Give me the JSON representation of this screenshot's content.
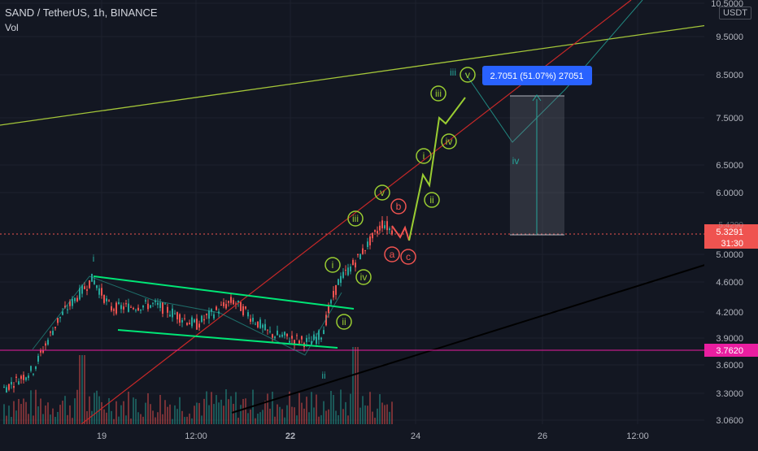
{
  "header": {
    "title": "SAND / TetherUS, 1h, BINANCE",
    "indicator": "Vol",
    "currency": "USDT"
  },
  "colors": {
    "bg": "#131722",
    "up": "#26a69a",
    "down": "#ef5350",
    "green_line": "#00e676",
    "olive_line": "#a4c639",
    "red_line": "#c62828",
    "magenta": "#e91ea0"
  },
  "chart_data": {
    "type": "candlestick",
    "symbol": "SAND / TetherUS",
    "interval": "1h",
    "exchange": "BINANCE",
    "y_ticks": [
      "10.5000",
      "9.5000",
      "8.5000",
      "7.5000",
      "6.5000",
      "6.0000",
      "5.0000",
      "4.6000",
      "4.2000",
      "3.9000",
      "3.6000",
      "3.3000",
      "3.0600"
    ],
    "x_ticks": [
      "19",
      "12:00",
      "22",
      "24",
      "26",
      "12:00"
    ],
    "last_price": "5.3291",
    "countdown": "31:30",
    "marked_level": "3.7620",
    "partial_label": "5.4290",
    "measure_label": "2.7051 (51.07%) 27051",
    "wave_labels": [
      "i",
      "ii",
      "i",
      "ii",
      "iii",
      "iv",
      "v",
      "a",
      "b",
      "c",
      "i",
      "ii",
      "iii",
      "iv",
      "v",
      "iii",
      "iv"
    ]
  }
}
